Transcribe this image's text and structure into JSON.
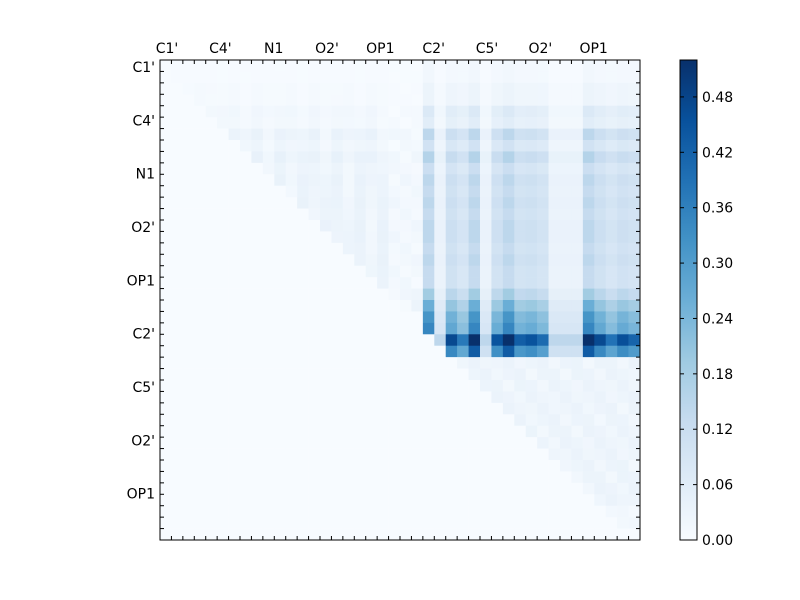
{
  "chart_data": {
    "type": "heatmap",
    "title": "",
    "xlabel": "",
    "ylabel": "",
    "x_tick_labels": [
      "C1'",
      "C4'",
      "N1",
      "O2'",
      "OP1",
      "C2'",
      "C5'",
      "O2'",
      "OP1"
    ],
    "y_tick_labels": [
      "C1'",
      "C4'",
      "N1",
      "O2'",
      "OP1",
      "C2'",
      "C5'",
      "O2'",
      "OP1"
    ],
    "colormap": "Blues",
    "colorscale_range": [
      0.0,
      0.52
    ],
    "colorbar_ticks": [
      "0.00",
      "0.06",
      "0.12",
      "0.18",
      "0.24",
      "0.30",
      "0.36",
      "0.42",
      "0.48"
    ],
    "grid_size": [
      42,
      42
    ],
    "matrix_structure": {
      "upper_triangle_only": true,
      "row_means_approx": [
        0.01,
        0.01,
        0.02,
        0.02,
        0.05,
        0.04,
        0.1,
        0.07,
        0.11,
        0.08,
        0.1,
        0.09,
        0.1,
        0.09,
        0.1,
        0.1,
        0.09,
        0.1,
        0.09,
        0.09,
        0.13,
        0.18,
        0.22,
        0.24,
        0.41,
        0.3,
        0.02,
        0.02,
        0.02,
        0.02,
        0.02,
        0.02,
        0.02,
        0.02,
        0.02,
        0.02,
        0.02,
        0.02,
        0.02,
        0.01,
        0.01,
        0.0
      ],
      "column_bands_high": [
        23,
        27,
        30,
        37
      ],
      "column_bands_low": [
        24,
        28,
        34,
        35,
        36
      ],
      "peak_value": 0.5,
      "peak_location": "row 21, columns 39-40"
    }
  }
}
